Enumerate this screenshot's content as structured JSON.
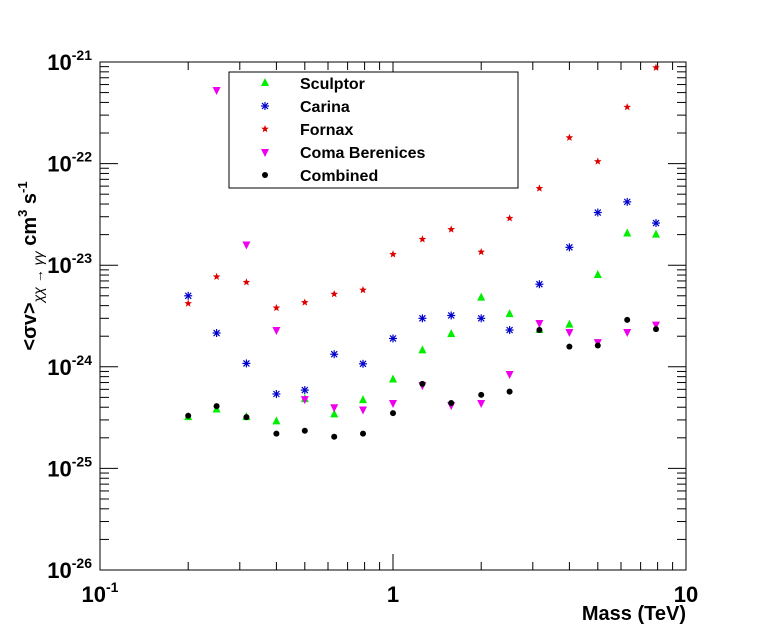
{
  "chart_data": {
    "type": "scatter",
    "xscale": "log",
    "yscale": "log",
    "xlim": [
      0.1,
      10
    ],
    "ylim": [
      1e-26,
      1e-21
    ],
    "xlabel": "Mass (TeV)",
    "ylabel": "<σv>χχ → γγ cm³ s⁻¹",
    "ylabel_parts": {
      "main": "<σv>",
      "subscript": "χχ → γγ",
      "unit": "cm",
      "unit_sup": "3",
      "unit2": "s",
      "unit2_sup": "-1"
    },
    "x_ticks": [
      {
        "value": 0.1,
        "base": "10",
        "exp": "-1"
      },
      {
        "value": 1,
        "base": "1",
        "exp": ""
      },
      {
        "value": 10,
        "base": "10",
        "exp": ""
      }
    ],
    "y_ticks": [
      {
        "value": 1e-26,
        "base": "10",
        "exp": "-26"
      },
      {
        "value": 1e-25,
        "base": "10",
        "exp": "-25"
      },
      {
        "value": 1e-24,
        "base": "10",
        "exp": "-24"
      },
      {
        "value": 1e-23,
        "base": "10",
        "exp": "-23"
      },
      {
        "value": 1e-22,
        "base": "10",
        "exp": "-22"
      },
      {
        "value": 1e-21,
        "base": "10",
        "exp": "-21"
      }
    ],
    "legend_position": "top-left",
    "series": [
      {
        "name": "Sculptor",
        "marker": "triangle-up",
        "color": "#00ee00",
        "x": [
          0.2,
          0.25,
          0.316,
          0.4,
          0.5,
          0.63,
          0.79,
          1.0,
          1.26,
          1.58,
          2.0,
          2.5,
          3.16,
          4.0,
          5.0,
          6.3,
          7.9
        ],
        "y": [
          3.2e-25,
          3.8e-25,
          3.2e-25,
          2.9e-25,
          4.8e-25,
          3.4e-25,
          4.7e-25,
          7.5e-25,
          1.45e-24,
          2.1e-24,
          4.8e-24,
          3.3e-24,
          2.3e-24,
          2.6e-24,
          8e-24,
          2.05e-23,
          2e-23
        ]
      },
      {
        "name": "Carina",
        "marker": "asterisk",
        "color": "#0000cc",
        "x": [
          0.2,
          0.25,
          0.316,
          0.4,
          0.5,
          0.63,
          0.79,
          1.0,
          1.26,
          1.58,
          2.0,
          2.5,
          3.16,
          4.0,
          5.0,
          6.3,
          7.9
        ],
        "y": [
          5e-24,
          2.15e-24,
          1.08e-24,
          5.4e-25,
          5.9e-25,
          1.33e-24,
          1.07e-24,
          1.9e-24,
          3e-24,
          3.2e-24,
          3e-24,
          2.3e-24,
          6.5e-24,
          1.5e-23,
          3.3e-23,
          4.2e-23,
          2.6e-23
        ]
      },
      {
        "name": "Fornax",
        "marker": "star",
        "color": "#dd0000",
        "x": [
          0.2,
          0.25,
          0.316,
          0.4,
          0.5,
          0.63,
          0.79,
          1.0,
          1.26,
          1.58,
          2.0,
          2.5,
          3.16,
          4.0,
          5.0,
          6.3,
          7.9
        ],
        "y": [
          4.2e-24,
          7.7e-24,
          6.8e-24,
          3.8e-24,
          4.3e-24,
          5.2e-24,
          5.7e-24,
          1.28e-23,
          1.8e-23,
          2.25e-23,
          1.35e-23,
          2.9e-23,
          5.7e-23,
          1.8e-22,
          1.05e-22,
          3.6e-22,
          8.8e-22
        ]
      },
      {
        "name": "Coma Berenices",
        "marker": "triangle-down",
        "color": "#ee00ee",
        "x": [
          0.25,
          0.316,
          0.4,
          0.5,
          0.63,
          0.79,
          1.0,
          1.26,
          1.58,
          2.0,
          2.5,
          3.16,
          4.0,
          5.0,
          6.3,
          7.9
        ],
        "y": [
          5.3e-22,
          1.6e-23,
          2.3e-24,
          4.8e-25,
          4e-25,
          3.8e-25,
          4.4e-25,
          6.6e-25,
          4.2e-25,
          4.4e-25,
          8.5e-25,
          2.7e-24,
          2.2e-24,
          1.75e-24,
          2.2e-24,
          2.6e-24
        ]
      },
      {
        "name": "Combined",
        "marker": "circle",
        "color": "#000000",
        "x": [
          0.2,
          0.25,
          0.316,
          0.4,
          0.5,
          0.63,
          0.79,
          1.0,
          1.26,
          1.58,
          2.0,
          2.5,
          3.16,
          4.0,
          5.0,
          6.3,
          7.9
        ],
        "y": [
          3.3e-25,
          4.1e-25,
          3.2e-25,
          2.2e-25,
          2.35e-25,
          2.05e-25,
          2.2e-25,
          3.5e-25,
          6.8e-25,
          4.4e-25,
          5.3e-25,
          5.7e-25,
          2.3e-24,
          1.58e-24,
          1.62e-24,
          2.9e-24,
          2.35e-24
        ]
      }
    ]
  }
}
